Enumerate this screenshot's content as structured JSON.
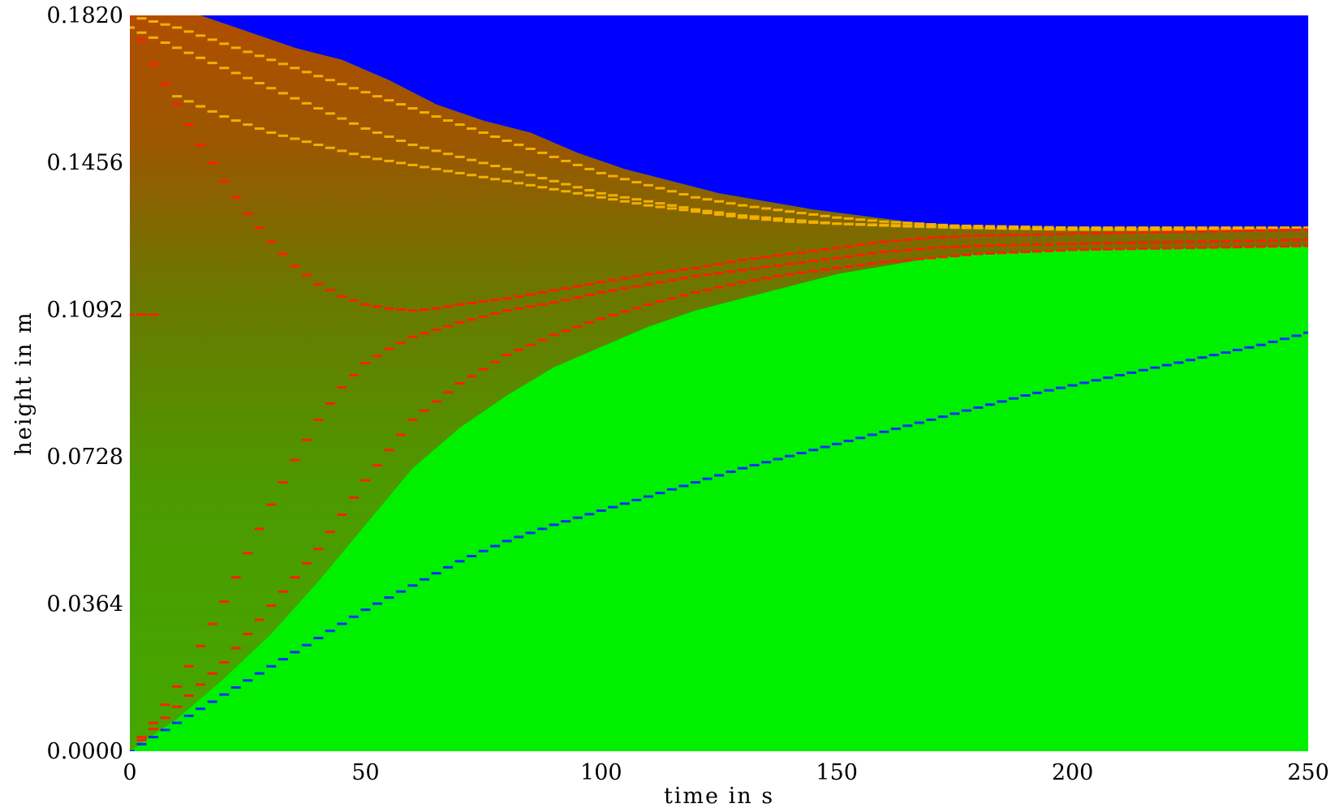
{
  "chart_data": {
    "type": "heatmap",
    "title": "",
    "xlabel": "time in s",
    "ylabel": "height in m",
    "xlim": [
      0,
      250
    ],
    "ylim": [
      0.0,
      0.182
    ],
    "x_ticks": [
      "0",
      "50",
      "100",
      "150",
      "200",
      "250"
    ],
    "y_ticks": [
      "0.0000",
      "0.0364",
      "0.0728",
      "0.1092",
      "0.1456",
      "0.1820"
    ],
    "grid": false,
    "legend": "none",
    "colors": {
      "above_surface": "#0000ff",
      "settled": "#00f000",
      "suspension": "#4ca200",
      "concentrated": "#b85000",
      "dense": "#ff1000",
      "front_marker_red": "#ff2000",
      "front_marker_yellow": "#f2b000",
      "front_marker_blue": "#0030ff"
    },
    "regions": {
      "free_surface": {
        "x": [
          0,
          15,
          25,
          35,
          45,
          55,
          65,
          75,
          85,
          95,
          105,
          115,
          125,
          135,
          145,
          155,
          165,
          175,
          185,
          200,
          225,
          250
        ],
        "y": [
          0.182,
          0.182,
          0.178,
          0.174,
          0.171,
          0.166,
          0.16,
          0.156,
          0.153,
          0.148,
          0.144,
          0.141,
          0.138,
          0.136,
          0.134,
          0.1325,
          0.131,
          0.13,
          0.1295,
          0.1295,
          0.1295,
          0.1295
        ]
      },
      "settled_boundary": {
        "x": [
          0,
          10,
          20,
          30,
          40,
          50,
          60,
          70,
          80,
          90,
          100,
          110,
          120,
          130,
          140,
          150,
          160,
          170,
          180,
          190,
          200,
          225,
          250
        ],
        "y": [
          0.0,
          0.008,
          0.018,
          0.029,
          0.042,
          0.056,
          0.07,
          0.08,
          0.088,
          0.095,
          0.1,
          0.105,
          0.109,
          0.112,
          0.115,
          0.118,
          0.12,
          0.122,
          0.123,
          0.1235,
          0.124,
          0.1245,
          0.125
        ]
      }
    },
    "series": [
      {
        "marker": "yellow",
        "x": [
          0,
          10,
          20,
          30,
          40,
          50,
          60,
          70,
          80,
          90,
          100,
          110,
          120,
          130,
          140,
          150,
          160,
          175,
          200,
          250
        ],
        "y": [
          0.182,
          0.179,
          0.175,
          0.171,
          0.167,
          0.163,
          0.159,
          0.155,
          0.151,
          0.147,
          0.143,
          0.14,
          0.137,
          0.135,
          0.1335,
          0.132,
          0.131,
          0.13,
          0.1295,
          0.1295
        ]
      },
      {
        "marker": "yellow",
        "x": [
          0,
          10,
          20,
          30,
          40,
          50,
          60,
          70,
          80,
          90,
          100,
          110,
          120,
          130,
          140,
          150,
          160,
          175,
          200,
          250
        ],
        "y": [
          0.179,
          0.174,
          0.169,
          0.164,
          0.159,
          0.154,
          0.15,
          0.147,
          0.144,
          0.141,
          0.138,
          0.136,
          0.134,
          0.1325,
          0.1315,
          0.1305,
          0.13,
          0.1295,
          0.129,
          0.129
        ]
      },
      {
        "marker": "yellow",
        "x": [
          10,
          20,
          30,
          40,
          50,
          60,
          70,
          80,
          90,
          100,
          110,
          120,
          130,
          140,
          150,
          165,
          180
        ],
        "y": [
          0.162,
          0.157,
          0.153,
          0.15,
          0.147,
          0.145,
          0.143,
          0.141,
          0.139,
          0.137,
          0.135,
          0.1335,
          0.132,
          0.131,
          0.1305,
          0.13,
          0.1295
        ]
      },
      {
        "marker": "red",
        "x": [
          0,
          5,
          10,
          15,
          20,
          25,
          30,
          35,
          40,
          45,
          50,
          55,
          60,
          65,
          70,
          80,
          90,
          100,
          110,
          120,
          130,
          140,
          150,
          160,
          170,
          180,
          200,
          225,
          250
        ],
        "y": [
          0.182,
          0.17,
          0.16,
          0.15,
          0.141,
          0.133,
          0.126,
          0.12,
          0.1155,
          0.1125,
          0.1105,
          0.1095,
          0.109,
          0.1095,
          0.1105,
          0.112,
          0.114,
          0.116,
          0.118,
          0.1195,
          0.1215,
          0.123,
          0.1245,
          0.126,
          0.127,
          0.1275,
          0.128,
          0.1285,
          0.129
        ]
      },
      {
        "marker": "red",
        "x": [
          0,
          5,
          10,
          15,
          20,
          25,
          30,
          35,
          40,
          45,
          50,
          55,
          60,
          70,
          80,
          90,
          100,
          110,
          120,
          130,
          140,
          150,
          160,
          170,
          180,
          200,
          225,
          250
        ],
        "y": [
          0.0,
          0.007,
          0.016,
          0.026,
          0.037,
          0.049,
          0.061,
          0.072,
          0.082,
          0.09,
          0.096,
          0.0995,
          0.1025,
          0.106,
          0.109,
          0.111,
          0.1135,
          0.1155,
          0.1175,
          0.119,
          0.1205,
          0.122,
          0.1235,
          0.1245,
          0.125,
          0.1255,
          0.126,
          0.1265
        ]
      },
      {
        "marker": "red",
        "x": [
          0,
          10,
          20,
          30,
          40,
          50,
          60,
          70,
          80,
          90,
          100,
          110,
          120,
          130,
          140,
          150,
          160,
          170,
          180,
          200,
          225,
          250
        ],
        "y": [
          0.0,
          0.011,
          0.022,
          0.036,
          0.05,
          0.067,
          0.082,
          0.091,
          0.098,
          0.103,
          0.107,
          0.1105,
          0.1135,
          0.116,
          0.118,
          0.1195,
          0.121,
          0.122,
          0.123,
          0.124,
          0.1245,
          0.125
        ]
      },
      {
        "marker": "red",
        "x": [
          0,
          5
        ],
        "y": [
          0.108,
          0.108
        ]
      },
      {
        "marker": "blue",
        "x": [
          0,
          10,
          20,
          30,
          40,
          50,
          60,
          70,
          80,
          90,
          100,
          110,
          120,
          130,
          140,
          150,
          160,
          170,
          180,
          190,
          200,
          210,
          220,
          230,
          240,
          250
        ],
        "y": [
          0.0,
          0.007,
          0.014,
          0.021,
          0.028,
          0.035,
          0.041,
          0.047,
          0.052,
          0.056,
          0.0595,
          0.063,
          0.0665,
          0.07,
          0.073,
          0.076,
          0.079,
          0.082,
          0.085,
          0.088,
          0.0905,
          0.093,
          0.0955,
          0.098,
          0.1005,
          0.1035
        ]
      }
    ]
  }
}
